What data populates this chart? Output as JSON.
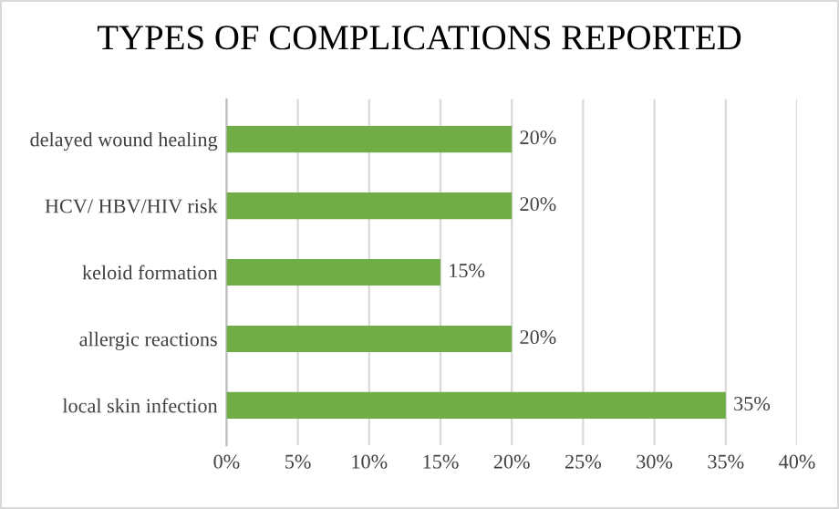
{
  "chart_data": {
    "type": "bar",
    "orientation": "horizontal",
    "title": "TYPES OF COMPLICATIONS REPORTED",
    "categories": [
      "delayed wound healing",
      "HCV/ HBV/HIV risk",
      "keloid formation",
      "allergic reactions",
      "local skin infection"
    ],
    "values": [
      20,
      20,
      15,
      20,
      35
    ],
    "value_labels": [
      "20%",
      "20%",
      "15%",
      "20%",
      "35%"
    ],
    "color": "#70ad47",
    "xlim": [
      0,
      40
    ],
    "xticks": [
      {
        "value": 0,
        "label": "0%"
      },
      {
        "value": 5,
        "label": "5%"
      },
      {
        "value": 10,
        "label": "10%"
      },
      {
        "value": 15,
        "label": "15%"
      },
      {
        "value": 20,
        "label": "20%"
      },
      {
        "value": 25,
        "label": "25%"
      },
      {
        "value": 30,
        "label": "30%"
      },
      {
        "value": 35,
        "label": "35%"
      },
      {
        "value": 40,
        "label": "40%"
      }
    ],
    "grid": "x"
  }
}
